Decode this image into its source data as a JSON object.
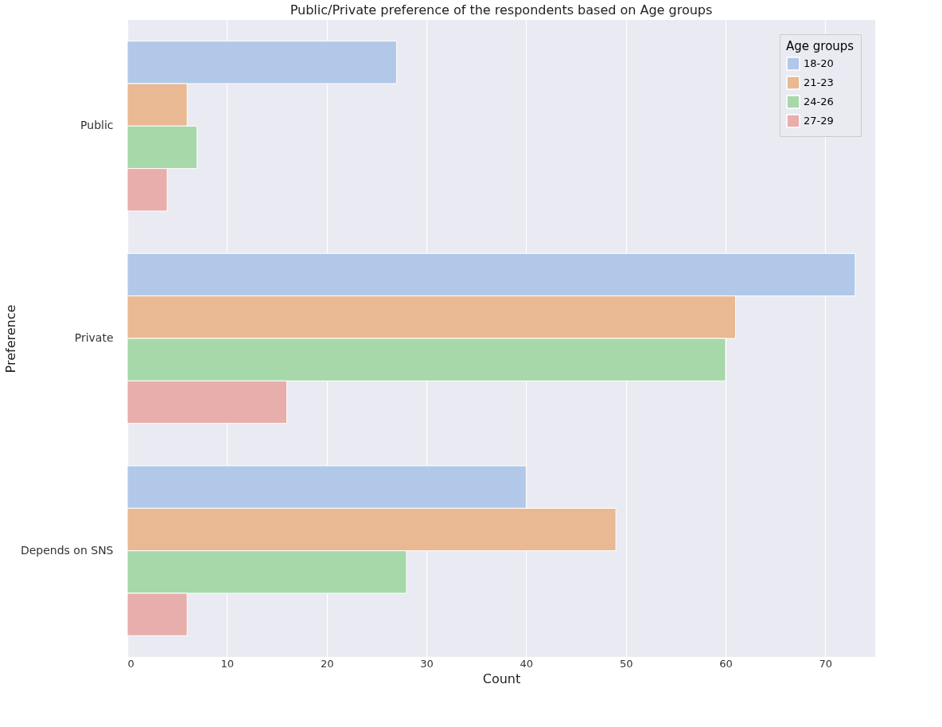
{
  "chart_data": {
    "type": "bar",
    "orientation": "horizontal",
    "title": "Public/Private preference of the respondents based on Age groups",
    "xlabel": "Count",
    "ylabel": "Preference",
    "legend_title": "Age groups",
    "categories": [
      "Public",
      "Private",
      "Depends on SNS"
    ],
    "series": [
      {
        "name": "18-20",
        "color": "#b1c8e8",
        "values": [
          27,
          73,
          40
        ]
      },
      {
        "name": "21-23",
        "color": "#e8b993",
        "values": [
          6,
          61,
          49
        ]
      },
      {
        "name": "24-26",
        "color": "#a6d8aa",
        "values": [
          7,
          60,
          28
        ]
      },
      {
        "name": "27-29",
        "color": "#e8aeab",
        "values": [
          4,
          16,
          6
        ]
      }
    ],
    "xlim": [
      0,
      75
    ],
    "xticks": [
      0,
      10,
      20,
      30,
      40,
      50,
      60,
      70
    ],
    "grid": "x",
    "legend": "top right"
  }
}
